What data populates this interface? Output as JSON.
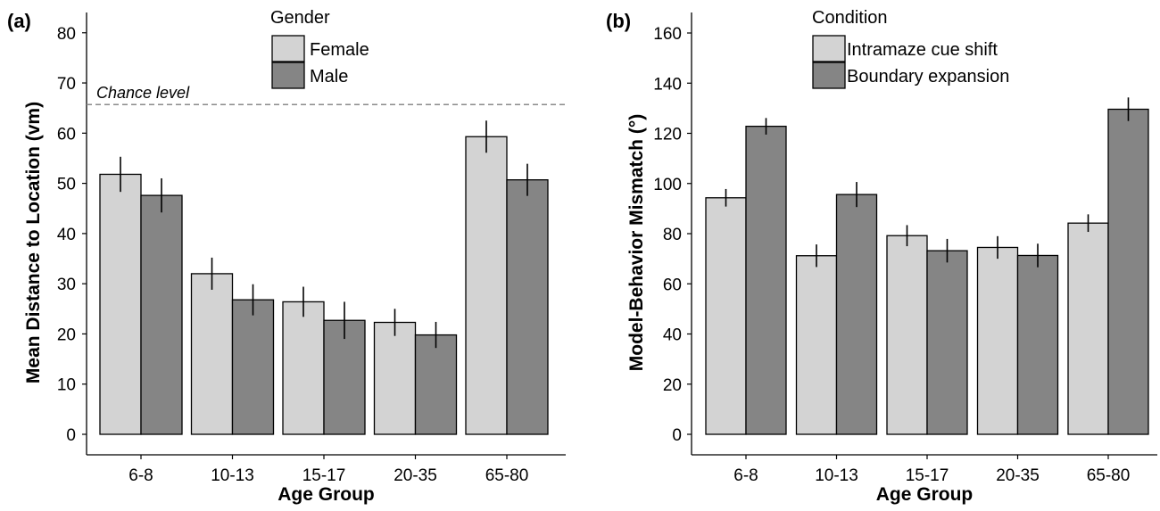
{
  "chart_data": [
    {
      "type": "bar",
      "panel_label": "(a)",
      "xlabel": "Age Group",
      "ylabel": "Mean Distance to Location (vm)",
      "categories": [
        "6-8",
        "10-13",
        "15-17",
        "20-35",
        "65-80"
      ],
      "ylim": [
        0,
        85
      ],
      "yticks": [
        0,
        10,
        20,
        30,
        40,
        50,
        60,
        70,
        80
      ],
      "legend_title": "Gender",
      "legend_position": "top-center",
      "reference_line": {
        "label": "Chance level",
        "value": 65.7
      },
      "series": [
        {
          "name": "Female",
          "color": "#d3d3d3",
          "values": [
            51.8,
            32.0,
            26.4,
            22.3,
            59.3
          ],
          "errors": [
            3.5,
            3.2,
            3.0,
            2.7,
            3.2
          ]
        },
        {
          "name": "Male",
          "color": "#858585",
          "values": [
            47.6,
            26.8,
            22.7,
            19.8,
            50.7
          ],
          "errors": [
            3.4,
            3.1,
            3.7,
            2.6,
            3.2
          ]
        }
      ],
      "grid": false
    },
    {
      "type": "bar",
      "panel_label": "(b)",
      "xlabel": "Age Group",
      "ylabel": "Model-Behavior Mismatch (°)",
      "categories": [
        "6-8",
        "10-13",
        "15-17",
        "20-35",
        "65-80"
      ],
      "ylim": [
        0,
        168
      ],
      "yticks": [
        0,
        20,
        40,
        60,
        80,
        100,
        120,
        140,
        160
      ],
      "legend_title": "Condition",
      "legend_position": "top-center",
      "series": [
        {
          "name": "Intramaze cue shift",
          "color": "#d3d3d3",
          "values": [
            94.3,
            71.2,
            79.2,
            74.5,
            84.2
          ],
          "errors": [
            3.5,
            4.5,
            4.2,
            4.5,
            3.5
          ]
        },
        {
          "name": "Boundary expansion",
          "color": "#858585",
          "values": [
            122.8,
            95.6,
            73.2,
            71.3,
            129.6
          ],
          "errors": [
            3.3,
            5.0,
            4.7,
            4.7,
            4.7
          ]
        }
      ],
      "grid": false
    }
  ]
}
